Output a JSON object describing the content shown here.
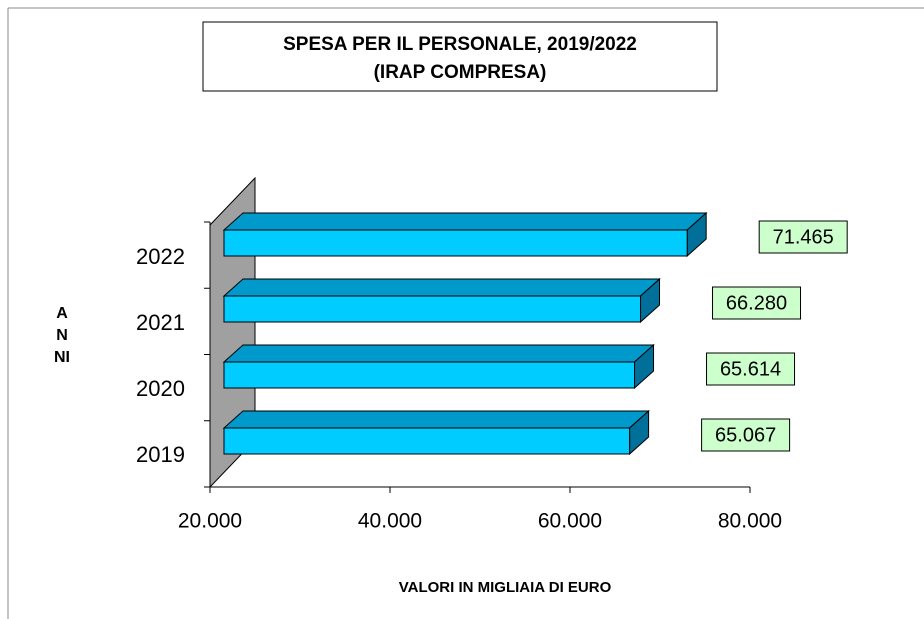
{
  "chart_data": {
    "type": "bar3d_horizontal",
    "title": "SPESA PER IL PERSONALE, 2019/2022",
    "subtitle": "(IRAP COMPRESA)",
    "x_label": "VALORI IN MIGLIAIA DI EURO",
    "y_label": "ANNI",
    "categories": [
      "2019",
      "2020",
      "2021",
      "2022"
    ],
    "values": [
      65067,
      65614,
      66280,
      71465
    ],
    "value_labels": [
      "65.067",
      "65.614",
      "66.280",
      "71.465"
    ],
    "color": "#00ccff",
    "xlim": [
      20000,
      80000
    ],
    "xticks": [
      {
        "value": 20000,
        "label": "20.000"
      },
      {
        "value": 40000,
        "label": "40.000"
      },
      {
        "value": 60000,
        "label": "60.000"
      },
      {
        "value": 80000,
        "label": "80.000"
      }
    ]
  }
}
